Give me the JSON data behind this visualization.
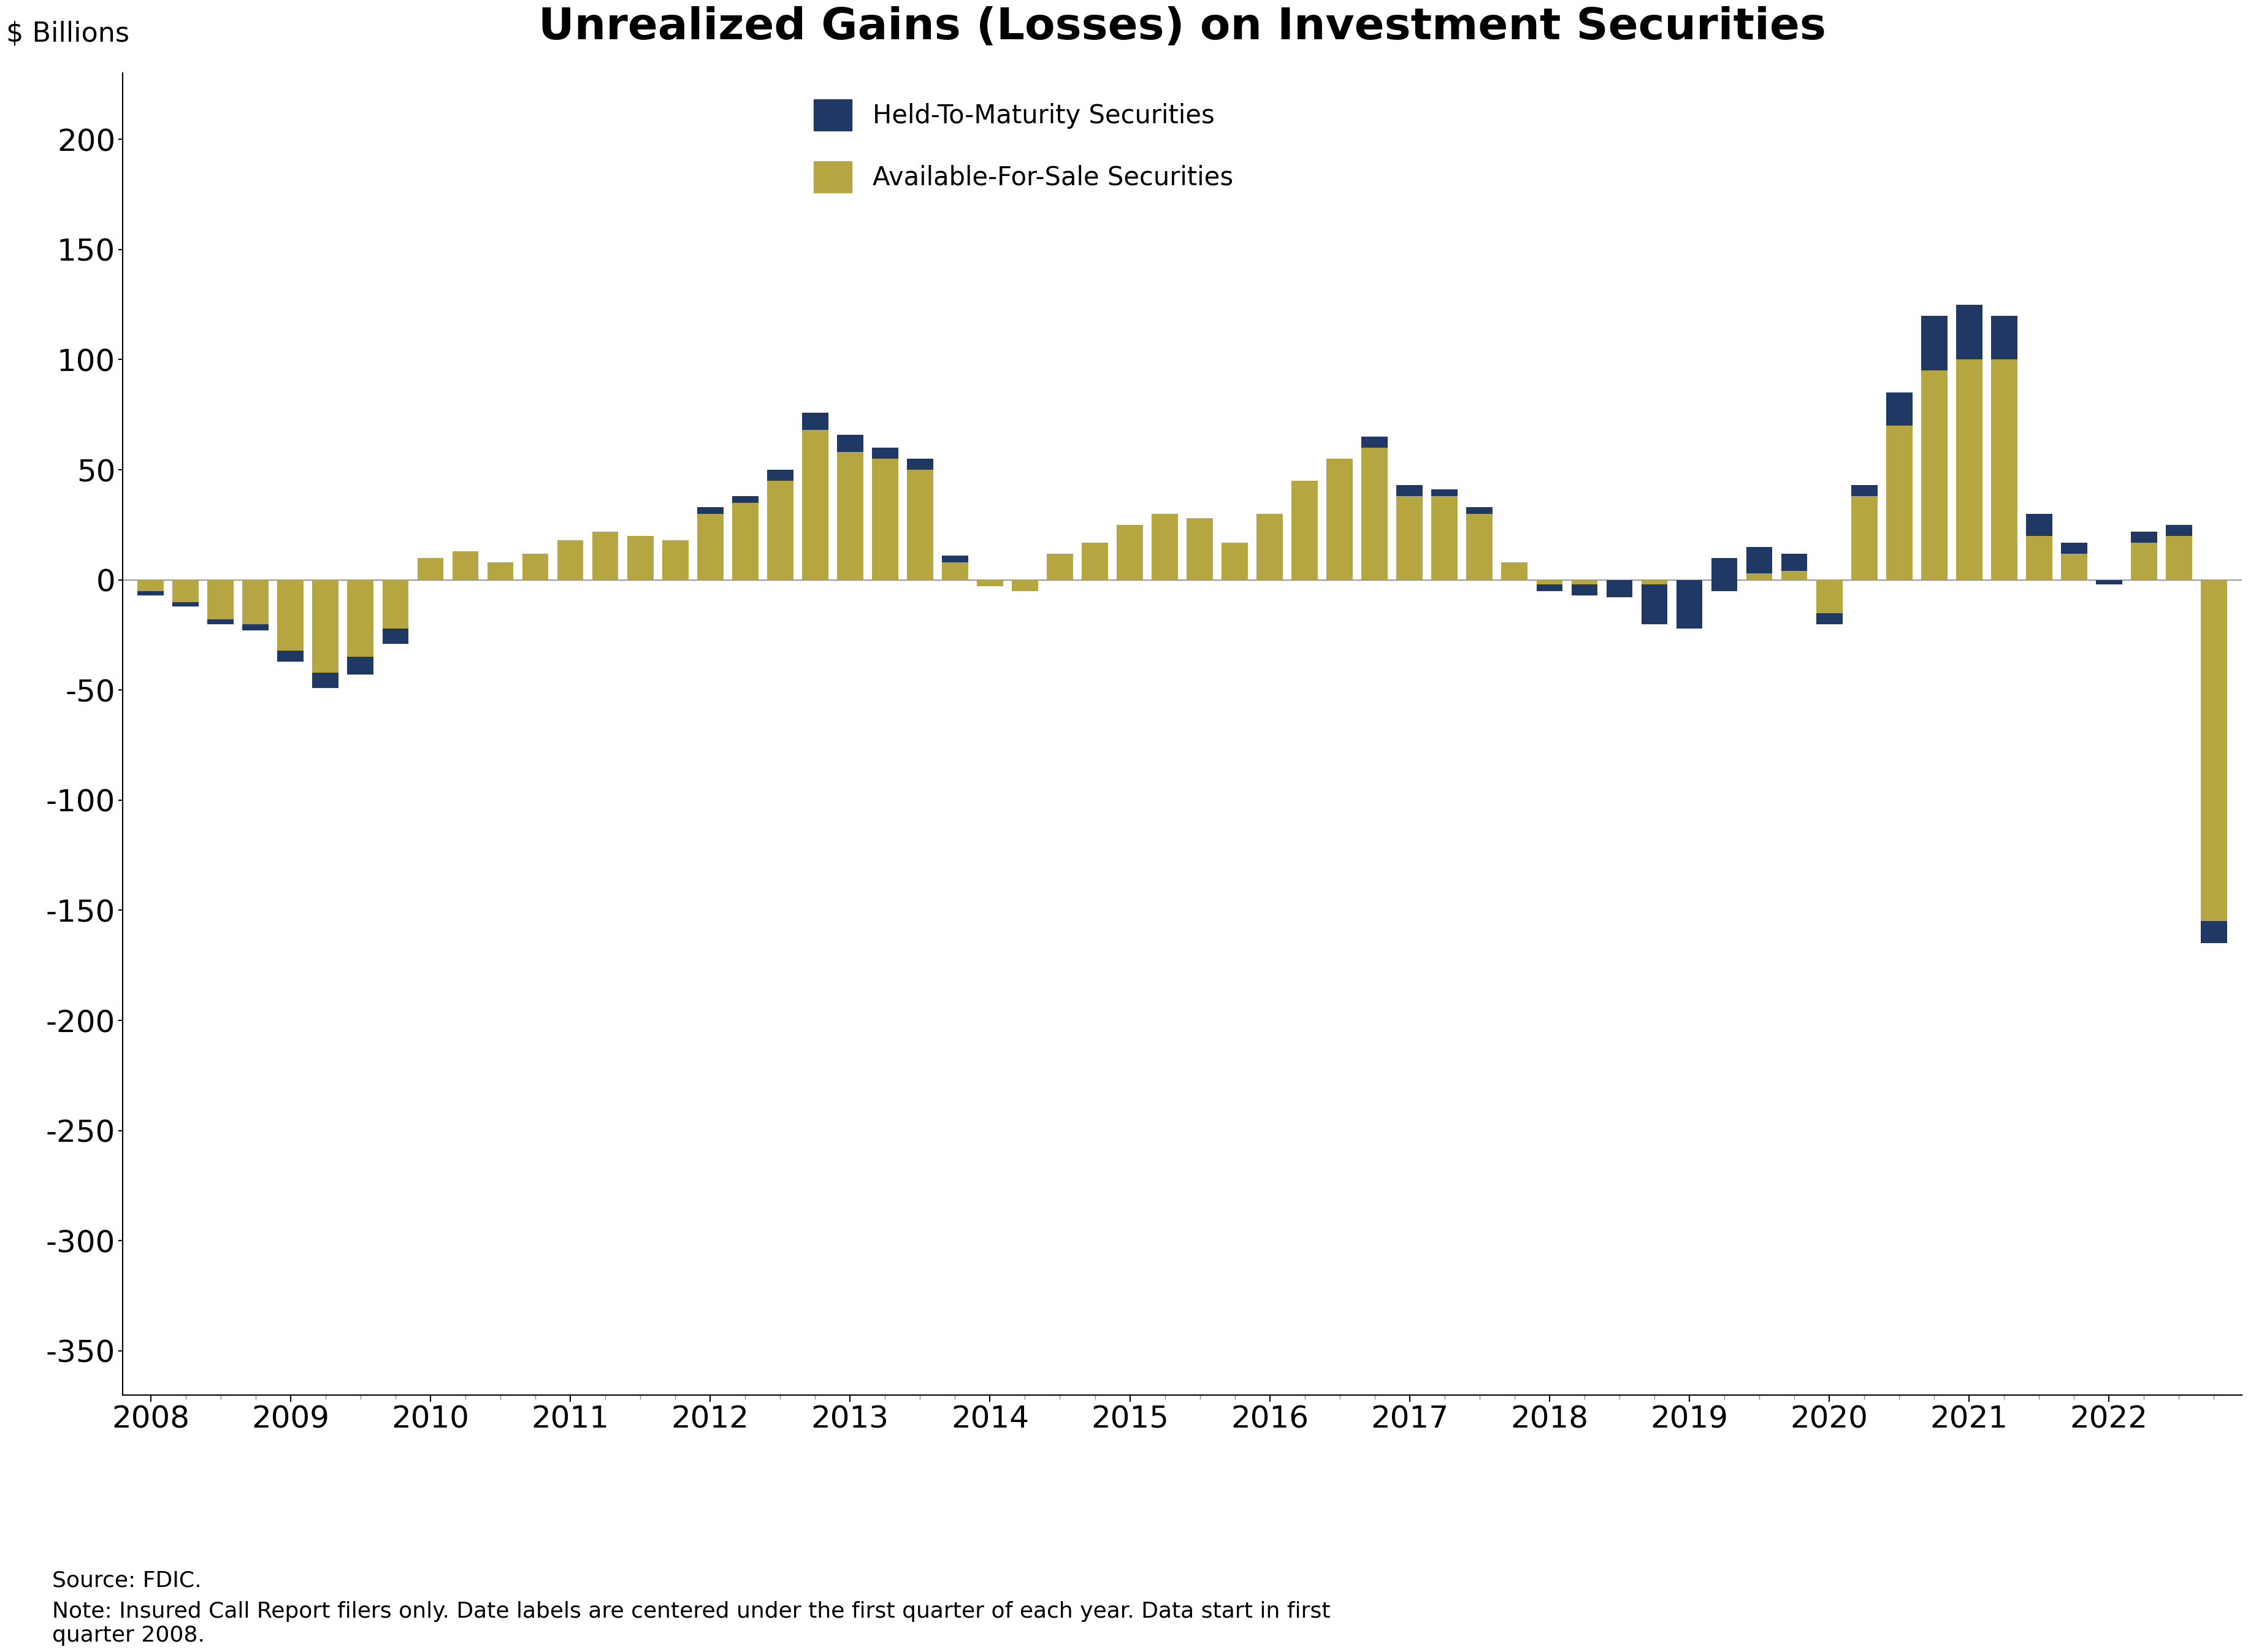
{
  "title": "Unrealized Gains (Losses) on Investment Securities",
  "ylabel": "$ Billions",
  "background_color": "#ffffff",
  "htms_color": "#1f3864",
  "afs_color": "#b5a642",
  "title_fontsize": 52,
  "label_fontsize": 32,
  "tick_fontsize": 36,
  "legend_fontsize": 30,
  "note_fontsize": 26,
  "ylim": [
    -370,
    230
  ],
  "yticks": [
    -350,
    -300,
    -250,
    -200,
    -150,
    -100,
    -50,
    0,
    50,
    100,
    150,
    200
  ],
  "source_text": "Source: FDIC.",
  "note_text": "Note: Insured Call Report filers only. Date labels are centered under the first quarter of each year. Data start in first\nquarter 2008.",
  "year_labels": [
    "2008",
    "2009",
    "2010",
    "2011",
    "2012",
    "2013",
    "2014",
    "2015",
    "2016",
    "2017",
    "2018",
    "2019",
    "2020",
    "2021",
    "2022"
  ],
  "htm_values": [
    -2,
    -2,
    -2,
    -3,
    -5,
    -7,
    -8,
    -7,
    0,
    0,
    0,
    0,
    0,
    0,
    0,
    0,
    3,
    3,
    5,
    8,
    8,
    5,
    5,
    3,
    0,
    0,
    0,
    0,
    0,
    0,
    0,
    0,
    0,
    0,
    0,
    5,
    5,
    3,
    3,
    0,
    -3,
    -5,
    -8,
    -18,
    -22,
    -15,
    -12,
    -8,
    -5,
    5,
    15,
    25,
    25,
    20,
    10,
    5,
    -2,
    -5,
    -5,
    -10
  ],
  "afs_values": [
    -5,
    -10,
    -18,
    -20,
    -32,
    -42,
    -35,
    -22,
    10,
    13,
    8,
    12,
    18,
    22,
    20,
    18,
    30,
    35,
    45,
    68,
    58,
    55,
    50,
    8,
    -3,
    -5,
    12,
    17,
    25,
    30,
    28,
    17,
    30,
    45,
    55,
    60,
    38,
    38,
    30,
    8,
    -2,
    -2,
    0,
    -2,
    0,
    10,
    15,
    12,
    -15,
    38,
    70,
    95,
    100,
    100,
    20,
    12,
    0,
    22,
    25,
    -155
  ]
}
